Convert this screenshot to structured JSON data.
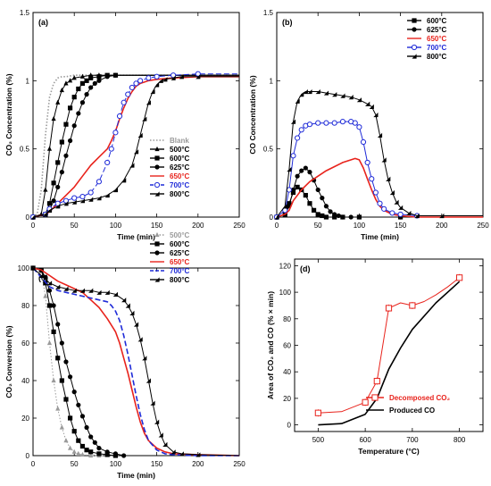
{
  "colors": {
    "black": "#000000",
    "red": "#e8231c",
    "blue": "#1f2bd8",
    "gray": "#9a9a9a"
  },
  "chart_data": [
    {
      "panel_label": "(a)",
      "type": "line",
      "xlabel": "Time (min)",
      "ylabel": "CO₂ Concentration (%)",
      "xlim": [
        0,
        250
      ],
      "ylim": [
        0,
        1.5
      ],
      "xticks": [
        0,
        50,
        100,
        150,
        200,
        250
      ],
      "yticks": [
        0,
        0.5,
        1,
        1.5
      ],
      "ytick_labels": [
        "0",
        "0.5",
        "1",
        "1.5"
      ],
      "legend_position": "bottom-right",
      "series": [
        {
          "name": "Blank",
          "color": "gray",
          "marker": "none",
          "dash": "dot",
          "x": [
            0,
            5,
            10,
            15,
            20,
            25,
            30,
            35,
            40,
            50,
            60,
            80,
            250
          ],
          "y": [
            0,
            0.02,
            0.2,
            0.6,
            0.88,
            0.98,
            1.02,
            1.03,
            1.03,
            1.04,
            1.04,
            1.04,
            1.04
          ]
        },
        {
          "name": "500°C",
          "color": "black",
          "marker": "triangle",
          "x": [
            0,
            10,
            15,
            20,
            25,
            30,
            35,
            40,
            45,
            50,
            60,
            70,
            80,
            250
          ],
          "y": [
            0,
            0.02,
            0.2,
            0.5,
            0.72,
            0.84,
            0.93,
            0.98,
            1.0,
            1.02,
            1.03,
            1.04,
            1.04,
            1.04
          ]
        },
        {
          "name": "600°C",
          "color": "black",
          "marker": "square",
          "x": [
            0,
            15,
            20,
            25,
            30,
            35,
            40,
            45,
            50,
            55,
            60,
            65,
            70,
            80,
            90,
            100,
            250
          ],
          "y": [
            0,
            0.02,
            0.1,
            0.25,
            0.4,
            0.55,
            0.68,
            0.8,
            0.88,
            0.94,
            0.98,
            1.0,
            1.02,
            1.03,
            1.04,
            1.04,
            1.04
          ]
        },
        {
          "name": "625°C",
          "color": "black",
          "marker": "circle",
          "x": [
            0,
            15,
            20,
            25,
            30,
            35,
            40,
            45,
            50,
            55,
            60,
            65,
            70,
            75,
            80,
            90,
            100,
            250
          ],
          "y": [
            0,
            0.02,
            0.05,
            0.12,
            0.22,
            0.33,
            0.45,
            0.56,
            0.67,
            0.76,
            0.84,
            0.9,
            0.95,
            0.98,
            1.0,
            1.03,
            1.04,
            1.04
          ]
        },
        {
          "name": "650°C",
          "color": "red",
          "marker": "none",
          "x": [
            0,
            15,
            20,
            30,
            40,
            50,
            60,
            70,
            80,
            90,
            95,
            100,
            105,
            110,
            115,
            120,
            125,
            130,
            135,
            140,
            150,
            170,
            200,
            250
          ],
          "y": [
            0,
            0.02,
            0.04,
            0.1,
            0.16,
            0.22,
            0.3,
            0.38,
            0.44,
            0.5,
            0.56,
            0.63,
            0.72,
            0.8,
            0.87,
            0.92,
            0.96,
            0.98,
            0.99,
            1.0,
            1.01,
            1.02,
            1.03,
            1.03
          ]
        },
        {
          "name": "700°C",
          "color": "blue",
          "marker": "open-circle",
          "dash": "dash",
          "x": [
            0,
            15,
            20,
            30,
            40,
            50,
            60,
            70,
            80,
            90,
            95,
            100,
            105,
            110,
            115,
            120,
            125,
            130,
            140,
            150,
            170,
            200,
            250
          ],
          "y": [
            0,
            0.02,
            0.06,
            0.1,
            0.12,
            0.14,
            0.15,
            0.18,
            0.26,
            0.4,
            0.5,
            0.62,
            0.74,
            0.84,
            0.9,
            0.95,
            0.98,
            1.0,
            1.02,
            1.03,
            1.04,
            1.05,
            1.05
          ]
        },
        {
          "name": "800°C",
          "color": "black",
          "marker": "half-triangle",
          "x": [
            0,
            15,
            20,
            30,
            40,
            50,
            60,
            70,
            80,
            90,
            100,
            110,
            120,
            125,
            130,
            135,
            140,
            145,
            150,
            155,
            160,
            170,
            180,
            200,
            250
          ],
          "y": [
            0,
            0.02,
            0.05,
            0.08,
            0.1,
            0.11,
            0.12,
            0.13,
            0.14,
            0.16,
            0.2,
            0.27,
            0.38,
            0.48,
            0.6,
            0.72,
            0.84,
            0.92,
            0.97,
            1.0,
            1.01,
            1.02,
            1.03,
            1.03,
            1.03
          ]
        }
      ]
    },
    {
      "panel_label": "(b)",
      "type": "line",
      "xlabel": "Time (min)",
      "ylabel": "CO Concentration (%)",
      "xlim": [
        0,
        250
      ],
      "ylim": [
        0,
        1.5
      ],
      "xticks": [
        0,
        50,
        100,
        150,
        200,
        250
      ],
      "yticks": [
        0,
        0.5,
        1,
        1.5
      ],
      "ytick_labels": [
        "0",
        "0.5",
        "1",
        "1.5"
      ],
      "legend_position": "top-right",
      "series": [
        {
          "name": "600°C",
          "color": "black",
          "marker": "square",
          "x": [
            0,
            10,
            15,
            20,
            25,
            30,
            35,
            40,
            45,
            50,
            55,
            60,
            70,
            80,
            100,
            150,
            250
          ],
          "y": [
            0,
            0.02,
            0.1,
            0.18,
            0.22,
            0.2,
            0.16,
            0.1,
            0.05,
            0.02,
            0.01,
            0,
            0,
            0,
            0,
            0,
            0
          ]
        },
        {
          "name": "625°C",
          "color": "black",
          "marker": "circle",
          "x": [
            0,
            10,
            15,
            20,
            25,
            30,
            35,
            40,
            45,
            50,
            55,
            60,
            65,
            70,
            75,
            80,
            90,
            100,
            150,
            250
          ],
          "y": [
            0,
            0.02,
            0.08,
            0.2,
            0.3,
            0.34,
            0.36,
            0.33,
            0.27,
            0.2,
            0.14,
            0.08,
            0.04,
            0.02,
            0.01,
            0,
            0,
            0,
            0,
            0
          ]
        },
        {
          "name": "650°C",
          "color": "red",
          "marker": "none",
          "x": [
            0,
            10,
            15,
            20,
            30,
            40,
            50,
            60,
            70,
            80,
            90,
            95,
            100,
            105,
            110,
            115,
            120,
            125,
            130,
            140,
            150,
            170,
            250
          ],
          "y": [
            0,
            0.02,
            0.05,
            0.12,
            0.2,
            0.26,
            0.3,
            0.34,
            0.37,
            0.4,
            0.42,
            0.43,
            0.42,
            0.36,
            0.28,
            0.2,
            0.13,
            0.08,
            0.05,
            0.02,
            0.01,
            0,
            0
          ]
        },
        {
          "name": "700°C",
          "color": "blue",
          "marker": "open-circle",
          "x": [
            0,
            10,
            15,
            20,
            25,
            30,
            35,
            40,
            50,
            60,
            70,
            80,
            90,
            95,
            100,
            105,
            110,
            115,
            120,
            125,
            130,
            140,
            150,
            170,
            250
          ],
          "y": [
            0,
            0.05,
            0.2,
            0.45,
            0.58,
            0.64,
            0.67,
            0.68,
            0.69,
            0.69,
            0.69,
            0.7,
            0.7,
            0.69,
            0.66,
            0.55,
            0.4,
            0.28,
            0.18,
            0.1,
            0.06,
            0.03,
            0.02,
            0.01,
            0.01
          ]
        },
        {
          "name": "800°C",
          "color": "black",
          "marker": "half-triangle",
          "x": [
            0,
            10,
            15,
            20,
            25,
            30,
            35,
            40,
            50,
            60,
            70,
            80,
            90,
            100,
            110,
            115,
            120,
            125,
            130,
            135,
            140,
            145,
            150,
            160,
            170,
            200,
            250
          ],
          "y": [
            0,
            0.08,
            0.35,
            0.7,
            0.85,
            0.9,
            0.92,
            0.92,
            0.92,
            0.91,
            0.9,
            0.89,
            0.88,
            0.86,
            0.83,
            0.81,
            0.75,
            0.6,
            0.42,
            0.28,
            0.18,
            0.11,
            0.07,
            0.03,
            0.01,
            0.01,
            0.01
          ]
        }
      ]
    },
    {
      "panel_label": "(c)",
      "type": "line",
      "xlabel": "Time (min)",
      "ylabel": "CO₂ Conversion (%)",
      "xlim": [
        0,
        250
      ],
      "ylim": [
        0,
        100
      ],
      "xticks": [
        0,
        50,
        100,
        150,
        200,
        250
      ],
      "yticks": [
        0,
        20,
        40,
        60,
        80,
        100
      ],
      "ytick_labels": [
        "0",
        "20",
        "40",
        "60",
        "80",
        "100"
      ],
      "legend_position": "top-right",
      "series": [
        {
          "name": "500°C",
          "color": "gray",
          "marker": "triangle",
          "dash": "dot",
          "x": [
            0,
            10,
            15,
            20,
            25,
            30,
            35,
            40,
            45,
            50,
            55,
            60,
            70,
            80,
            100,
            250
          ],
          "y": [
            100,
            98,
            85,
            60,
            40,
            25,
            15,
            8,
            4,
            2,
            1,
            0.5,
            0,
            0,
            0,
            0
          ]
        },
        {
          "name": "600°C",
          "color": "black",
          "marker": "square",
          "x": [
            0,
            10,
            15,
            20,
            25,
            30,
            35,
            40,
            45,
            50,
            55,
            60,
            65,
            70,
            80,
            90,
            100,
            250
          ],
          "y": [
            100,
            99,
            92,
            80,
            66,
            52,
            40,
            30,
            20,
            13,
            8,
            5,
            3,
            2,
            1,
            0.5,
            0,
            0
          ]
        },
        {
          "name": "625°C",
          "color": "black",
          "marker": "circle",
          "x": [
            0,
            10,
            15,
            20,
            25,
            30,
            35,
            40,
            45,
            50,
            55,
            60,
            65,
            70,
            75,
            80,
            90,
            100,
            110,
            250
          ],
          "y": [
            100,
            99,
            95,
            88,
            80,
            70,
            60,
            50,
            42,
            34,
            27,
            21,
            15,
            10,
            7,
            4,
            2,
            1,
            0,
            0
          ]
        },
        {
          "name": "650°C",
          "color": "red",
          "marker": "none",
          "x": [
            0,
            10,
            20,
            30,
            40,
            50,
            60,
            70,
            80,
            90,
            100,
            105,
            110,
            115,
            120,
            125,
            130,
            135,
            140,
            150,
            160,
            170,
            200,
            250
          ],
          "y": [
            100,
            99,
            96,
            93,
            91,
            89,
            87,
            83,
            79,
            73,
            66,
            60,
            52,
            44,
            35,
            26,
            18,
            12,
            8,
            4,
            2,
            1,
            0.5,
            0
          ]
        },
        {
          "name": "700°C",
          "color": "blue",
          "marker": "none",
          "dash": "dash",
          "x": [
            0,
            10,
            20,
            30,
            40,
            50,
            60,
            70,
            80,
            90,
            95,
            100,
            105,
            110,
            115,
            120,
            125,
            130,
            135,
            140,
            150,
            160,
            170,
            200,
            250
          ],
          "y": [
            100,
            95,
            90,
            88,
            87,
            86,
            85,
            84,
            83,
            82,
            80,
            77,
            72,
            64,
            54,
            43,
            32,
            22,
            14,
            8,
            3,
            1,
            0.5,
            0,
            0
          ]
        },
        {
          "name": "800°C",
          "color": "black",
          "marker": "half-triangle",
          "x": [
            0,
            10,
            20,
            30,
            40,
            50,
            60,
            70,
            80,
            90,
            100,
            110,
            115,
            120,
            125,
            130,
            135,
            140,
            145,
            150,
            155,
            160,
            170,
            180,
            200,
            250
          ],
          "y": [
            100,
            96,
            92,
            90,
            89,
            88,
            88,
            88,
            87,
            87,
            86,
            83,
            80,
            76,
            70,
            62,
            52,
            40,
            28,
            18,
            11,
            6,
            2,
            1,
            0.5,
            0
          ]
        }
      ]
    },
    {
      "panel_label": "(d)",
      "type": "line",
      "xlabel": "Temperature (°C)",
      "ylabel": "Area of CO₂ and CO (% × min)",
      "xlim": [
        450,
        850
      ],
      "ylim": [
        -5,
        125
      ],
      "xticks": [
        500,
        600,
        700,
        800
      ],
      "yticks": [
        0,
        20,
        40,
        60,
        80,
        100,
        120
      ],
      "ytick_labels": [
        "0",
        "20",
        "40",
        "60",
        "80",
        "100",
        "120"
      ],
      "legend_position": "bottom-right",
      "series": [
        {
          "name": "Decomposed CO₂",
          "color": "red",
          "marker": "open-square",
          "error_bars": true,
          "x": [
            500,
            550,
            600,
            625,
            650,
            675,
            700,
            725,
            750,
            775,
            800
          ],
          "y": [
            9,
            10,
            17,
            33,
            88,
            92,
            90,
            93,
            98,
            104,
            111
          ],
          "markers_at": [
            500,
            600,
            625,
            650,
            700,
            800
          ]
        },
        {
          "name": "Produced CO",
          "color": "black",
          "marker": "none",
          "x": [
            500,
            550,
            600,
            625,
            650,
            675,
            700,
            750,
            800
          ],
          "y": [
            0,
            1,
            8,
            20,
            42,
            58,
            72,
            92,
            108
          ]
        }
      ]
    }
  ]
}
